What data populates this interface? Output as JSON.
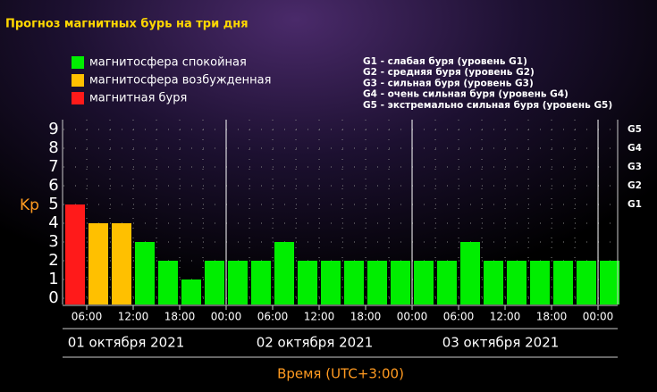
{
  "chart_data": {
    "type": "bar",
    "title": "Прогноз магнитных бурь на три дня",
    "legend": [
      {
        "name": "магнитосфера спокойная",
        "color": "#00ee00"
      },
      {
        "name": "магнитосфера возбужденная",
        "color": "#ffc000"
      },
      {
        "name": "магнитная буря",
        "color": "#ff1a1a"
      }
    ],
    "scale_notes": [
      "G1 - слабая буря (уровень G1)",
      "G2 - средняя буря (уровень G2)",
      "G3 - сильная буря (уровень G3)",
      "G4 - очень сильная буря (уровень G4)",
      "G5 - экстремально сильная буря (уровень G5)"
    ],
    "ylabel": "Kp",
    "xlabel": "Время (UTC+3:00)",
    "values": [
      5,
      4,
      4,
      3,
      2,
      1,
      2,
      2,
      2,
      3,
      2,
      2,
      2,
      2,
      2,
      2,
      2,
      3,
      2,
      2,
      2,
      2,
      2,
      2
    ],
    "colors": [
      "#ff1a1a",
      "#ffc000",
      "#ffc000",
      "#00ee00",
      "#00ee00",
      "#00ee00",
      "#00ee00",
      "#00ee00",
      "#00ee00",
      "#00ee00",
      "#00ee00",
      "#00ee00",
      "#00ee00",
      "#00ee00",
      "#00ee00",
      "#00ee00",
      "#00ee00",
      "#00ee00",
      "#00ee00",
      "#00ee00",
      "#00ee00",
      "#00ee00",
      "#00ee00",
      "#00ee00"
    ],
    "xtick_labels": [
      "06:00",
      "12:00",
      "18:00",
      "00:00",
      "06:00",
      "12:00",
      "18:00",
      "00:00",
      "06:00",
      "12:00",
      "18:00",
      "00:00"
    ],
    "days": [
      "01 октября 2021",
      "02 октября 2021",
      "03 октября 2021"
    ],
    "ylim": [
      0,
      9
    ],
    "yticks": [
      0,
      1,
      2,
      3,
      4,
      5,
      6,
      7,
      8,
      9
    ],
    "y2ticks": [
      {
        "value": 5,
        "label": "G1"
      },
      {
        "value": 6,
        "label": "G2"
      },
      {
        "value": 7,
        "label": "G3"
      },
      {
        "value": 8,
        "label": "G4"
      },
      {
        "value": 9,
        "label": "G5"
      }
    ],
    "grid": true
  }
}
